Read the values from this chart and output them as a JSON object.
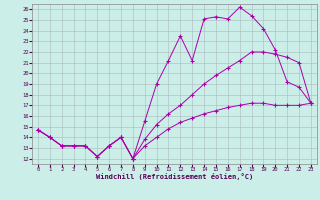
{
  "xlabel": "Windchill (Refroidissement éolien,°C)",
  "bg_color": "#cceee8",
  "line_color": "#aa00aa",
  "grid_color": "#aabbbb",
  "xlim": [
    -0.5,
    23.5
  ],
  "ylim": [
    11.5,
    26.5
  ],
  "yticks": [
    12,
    13,
    14,
    15,
    16,
    17,
    18,
    19,
    20,
    21,
    22,
    23,
    24,
    25,
    26
  ],
  "xticks": [
    0,
    1,
    2,
    3,
    4,
    5,
    6,
    7,
    8,
    9,
    10,
    11,
    12,
    13,
    14,
    15,
    16,
    17,
    18,
    19,
    20,
    21,
    22,
    23
  ],
  "line1_x": [
    0,
    1,
    2,
    3,
    4,
    5,
    6,
    7,
    8,
    9,
    10,
    11,
    12,
    13,
    14,
    15,
    16,
    17,
    18,
    19,
    20,
    21,
    22,
    23
  ],
  "line1_y": [
    14.7,
    14.0,
    13.2,
    13.2,
    13.2,
    12.2,
    13.2,
    14.0,
    12.0,
    15.5,
    19.0,
    21.2,
    23.5,
    21.2,
    25.1,
    25.3,
    25.1,
    26.2,
    25.4,
    24.2,
    22.2,
    19.2,
    18.7,
    17.2
  ],
  "line2_x": [
    0,
    1,
    2,
    3,
    4,
    5,
    6,
    7,
    8,
    9,
    10,
    11,
    12,
    13,
    14,
    15,
    16,
    17,
    18,
    19,
    20,
    21,
    22,
    23
  ],
  "line2_y": [
    14.7,
    14.0,
    13.2,
    13.2,
    13.2,
    12.2,
    13.2,
    14.0,
    12.0,
    13.8,
    15.2,
    16.2,
    17.0,
    18.0,
    19.0,
    19.8,
    20.5,
    21.2,
    22.0,
    22.0,
    21.8,
    21.5,
    21.0,
    17.2
  ],
  "line3_x": [
    0,
    1,
    2,
    3,
    4,
    5,
    6,
    7,
    8,
    9,
    10,
    11,
    12,
    13,
    14,
    15,
    16,
    17,
    18,
    19,
    20,
    21,
    22,
    23
  ],
  "line3_y": [
    14.7,
    14.0,
    13.2,
    13.2,
    13.2,
    12.2,
    13.2,
    14.0,
    12.0,
    13.2,
    14.0,
    14.8,
    15.4,
    15.8,
    16.2,
    16.5,
    16.8,
    17.0,
    17.2,
    17.2,
    17.0,
    17.0,
    17.0,
    17.2
  ]
}
